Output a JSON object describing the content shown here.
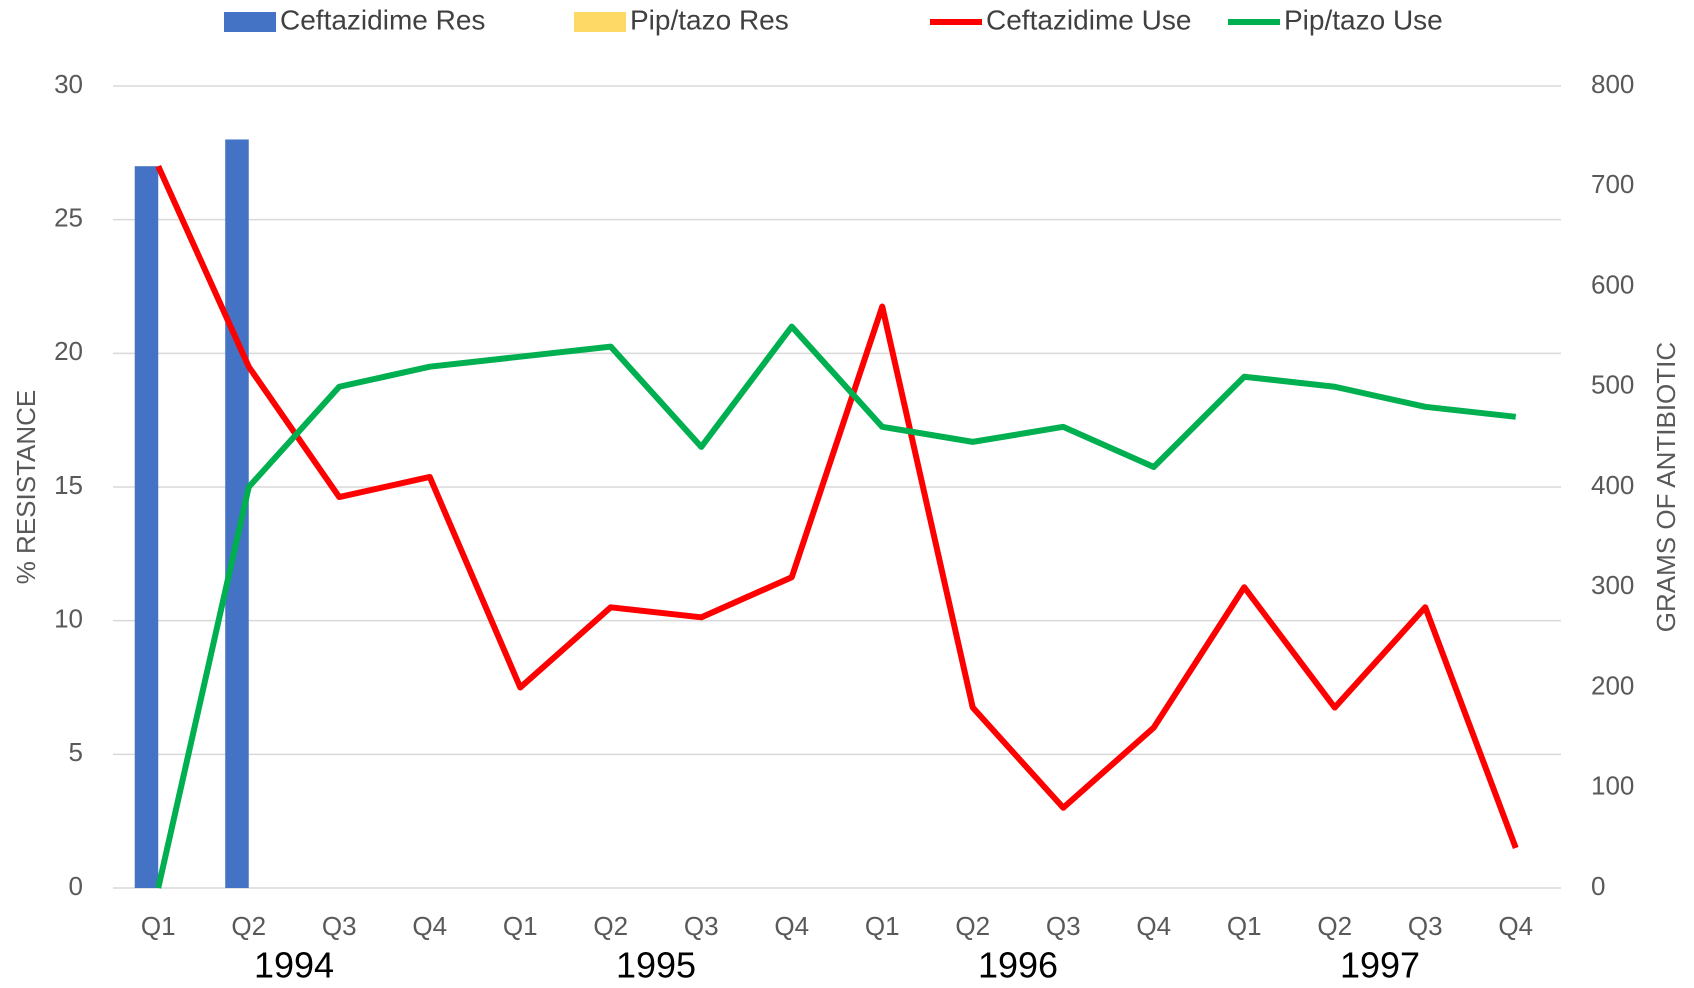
{
  "chart_data": {
    "type": "bar",
    "y_label": "% RESISTANCE",
    "y2_label": "GRAMS OF ANTIBIOTIC",
    "categories": [
      "Q1",
      "Q2",
      "Q3",
      "Q4",
      "Q1",
      "Q2",
      "Q3",
      "Q4",
      "Q1",
      "Q2",
      "Q3",
      "Q4",
      "Q1",
      "Q2",
      "Q3",
      "Q4"
    ],
    "year_labels": [
      "1994",
      "1995",
      "1996",
      "1997"
    ],
    "series": [
      {
        "name": "Ceftazidime Res",
        "type": "bar",
        "color": "#4472c4",
        "values": [
          27,
          28,
          null,
          null,
          null,
          null,
          null,
          null,
          null,
          null,
          null,
          null,
          null,
          null,
          null,
          null
        ]
      },
      {
        "name": "Pip/tazo Res",
        "type": "bar",
        "color": "#ffd966",
        "values": [
          null,
          null,
          null,
          null,
          null,
          null,
          null,
          null,
          null,
          null,
          null,
          null,
          null,
          null,
          null,
          null
        ]
      },
      {
        "name": "Ceftazidime Use",
        "type": "line",
        "axis": "y2",
        "color": "#ff0000",
        "values": [
          720,
          520,
          390,
          410,
          200,
          280,
          270,
          310,
          580,
          180,
          80,
          160,
          300,
          180,
          280,
          40
        ]
      },
      {
        "name": "Pip/tazo Use",
        "type": "line",
        "axis": "y2",
        "color": "#00b050",
        "values": [
          0,
          400,
          500,
          520,
          530,
          540,
          440,
          560,
          460,
          445,
          460,
          420,
          510,
          500,
          480,
          470
        ]
      }
    ],
    "ylim": [
      0,
      30
    ],
    "yticks": [
      0,
      5,
      10,
      15,
      20,
      25,
      30
    ],
    "y2lim": [
      0,
      800
    ],
    "y2ticks": [
      0,
      100,
      200,
      300,
      400,
      500,
      600,
      700,
      800
    ],
    "grid": true
  }
}
